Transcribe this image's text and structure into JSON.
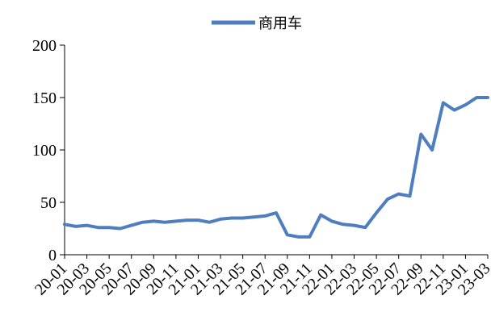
{
  "chart_data": {
    "type": "line",
    "title": "",
    "xlabel": "",
    "ylabel": "",
    "ylim": [
      0,
      200
    ],
    "yticks": [
      "0",
      "50",
      "100",
      "150",
      "200"
    ],
    "xticks": [
      "20-01",
      "20-03",
      "20-05",
      "20-07",
      "20-09",
      "20-11",
      "21-01",
      "21-03",
      "21-05",
      "21-07",
      "21-09",
      "21-11",
      "22-01",
      "22-03",
      "22-05",
      "22-07",
      "22-09",
      "22-11",
      "23-01",
      "23-03"
    ],
    "grid": false,
    "legend_position": "top-center",
    "series": [
      {
        "name": "商用车",
        "color": "#4f7ec0",
        "x": [
          "20-01",
          "20-02",
          "20-03",
          "20-04",
          "20-05",
          "20-06",
          "20-07",
          "20-08",
          "20-09",
          "20-10",
          "20-11",
          "20-12",
          "21-01",
          "21-02",
          "21-03",
          "21-04",
          "21-05",
          "21-06",
          "21-07",
          "21-08",
          "21-09",
          "21-10",
          "21-11",
          "21-12",
          "22-01",
          "22-02",
          "22-03",
          "22-04",
          "22-05",
          "22-06",
          "22-07",
          "22-08",
          "22-09",
          "22-10",
          "22-11",
          "22-12",
          "23-01",
          "23-02",
          "23-03"
        ],
        "values": [
          29,
          27,
          28,
          26,
          26,
          25,
          28,
          31,
          32,
          31,
          32,
          33,
          33,
          31,
          34,
          35,
          35,
          36,
          37,
          40,
          19,
          17,
          17,
          38,
          32,
          29,
          28,
          26,
          40,
          53,
          58,
          56,
          115,
          100,
          145,
          138,
          143,
          150,
          150
        ]
      }
    ]
  }
}
